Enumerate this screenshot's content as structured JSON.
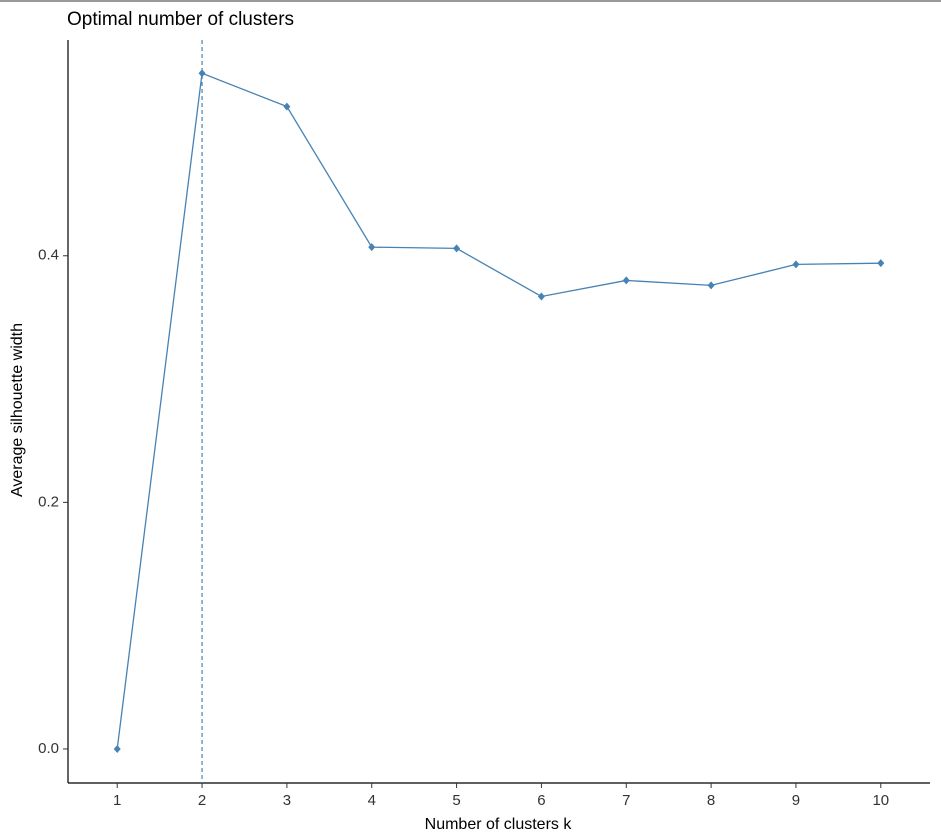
{
  "chart_data": {
    "type": "line",
    "title": "Optimal number of clusters",
    "x_label": "Number of clusters k",
    "y_label": "Average silhouette width",
    "x": [
      1,
      2,
      3,
      4,
      5,
      6,
      7,
      8,
      9,
      10
    ],
    "series": [
      {
        "name": "silhouette",
        "color": "#4682b4",
        "values": [
          0.0,
          0.548,
          0.521,
          0.407,
          0.406,
          0.367,
          0.38,
          0.376,
          0.393,
          0.394
        ]
      }
    ],
    "vline": 2,
    "xlim": [
      0.42,
      10.58
    ],
    "ylim": [
      -0.0276,
      0.575
    ],
    "xticks": [
      1,
      2,
      3,
      4,
      5,
      6,
      7,
      8,
      9,
      10
    ],
    "yticks": [
      {
        "value": 0,
        "label": "0.0"
      },
      0.2,
      0.4
    ],
    "grid": false,
    "legend": false
  }
}
